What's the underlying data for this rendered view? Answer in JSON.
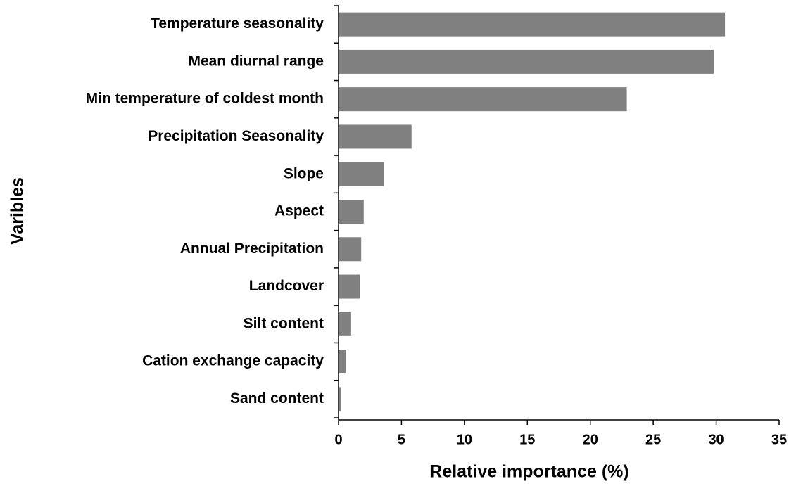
{
  "chart_data": {
    "type": "bar",
    "orientation": "horizontal",
    "categories": [
      "Temperature seasonality",
      "Mean diurnal range",
      "Min temperature of coldest month",
      "Precipitation Seasonality",
      "Slope",
      "Aspect",
      "Annual Precipitation",
      "Landcover",
      "Silt content",
      "Cation exchange capacity",
      "Sand content"
    ],
    "values": [
      30.7,
      29.8,
      22.9,
      5.8,
      3.6,
      2.0,
      1.8,
      1.7,
      1.0,
      0.6,
      0.2
    ],
    "color": "#808080",
    "x_label": "Relative importance (%)",
    "y_label": "Varibles",
    "xlim": [
      0,
      35
    ],
    "xticks": [
      0,
      5,
      10,
      15,
      20,
      25,
      30,
      35
    ],
    "grid": false
  }
}
